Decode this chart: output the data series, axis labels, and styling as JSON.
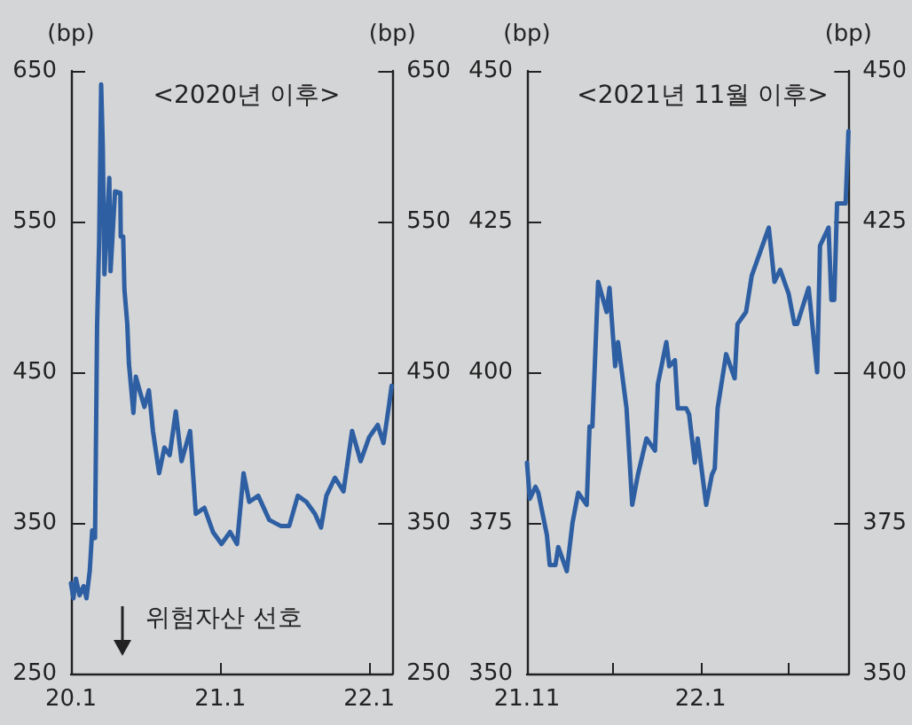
{
  "chart_data": [
    {
      "type": "line",
      "title": "<2020년 이후>",
      "ylabel": "(bp)",
      "y2label": "(bp)",
      "marker": "none",
      "annotations": [
        "위험자산 선호"
      ],
      "x": [
        "2020-01-01",
        "2020-01-07",
        "2020-01-13",
        "2020-01-22",
        "2020-02-01",
        "2020-02-08",
        "2020-02-16",
        "2020-02-22",
        "2020-02-29",
        "2020-03-05",
        "2020-03-10",
        "2020-03-15",
        "2020-03-19",
        "2020-03-23",
        "2020-04-04",
        "2020-04-07",
        "2020-04-18",
        "2020-05-01",
        "2020-05-02",
        "2020-05-08",
        "2020-05-11",
        "2020-05-18",
        "2020-05-22",
        "2020-06-02",
        "2020-06-08",
        "2020-06-15",
        "2020-06-29",
        "2020-07-10",
        "2020-07-20",
        "2020-08-04",
        "2020-08-17",
        "2020-08-30",
        "2020-09-14",
        "2020-09-28",
        "2020-10-19",
        "2020-11-02",
        "2020-11-23",
        "2020-12-14",
        "2021-01-04",
        "2021-01-25",
        "2021-02-11",
        "2021-02-27",
        "2021-03-13",
        "2021-04-04",
        "2021-05-01",
        "2021-05-29",
        "2021-06-19",
        "2021-07-10",
        "2021-07-31",
        "2021-08-21",
        "2021-09-05",
        "2021-09-18",
        "2021-10-09",
        "2021-10-30",
        "2021-11-20",
        "2021-12-11",
        "2022-01-01",
        "2022-01-22",
        "2022-02-05",
        "2022-02-18",
        "2022-02-25"
      ],
      "series": [
        {
          "color": "#2e5fa3",
          "values": [
            310,
            300,
            313,
            302,
            308,
            300,
            318,
            345,
            340,
            480,
            536,
            641,
            600,
            515,
            579,
            517,
            570,
            569,
            540,
            540,
            505,
            482,
            456,
            423,
            447,
            440,
            427,
            438,
            411,
            383,
            400,
            395,
            424,
            391,
            411,
            356,
            360,
            344,
            336,
            344,
            336,
            383,
            364,
            368,
            352,
            348,
            348,
            368,
            364,
            356,
            347,
            368,
            380,
            371,
            411,
            391,
            407,
            415,
            403,
            427,
            441
          ]
        }
      ],
      "xlim": [
        "2020-01-01",
        "2022-02-27"
      ],
      "xticks": [
        {
          "value": "2020-01",
          "label": "20.1"
        },
        {
          "value": "2021-01",
          "label": "21.1"
        },
        {
          "value": "2022-01",
          "label": "22.1"
        }
      ],
      "ylim": [
        250,
        650
      ],
      "yticks": [
        250,
        350,
        450,
        550,
        650
      ],
      "y2lim": [
        250,
        650
      ],
      "y2ticks": [
        250,
        350,
        450,
        550,
        650
      ]
    },
    {
      "type": "line",
      "title": "<2021년 11월 이후>",
      "ylabel": "(bp)",
      "y2label": "(bp)",
      "marker": "none",
      "x": [
        "2021-11-01",
        "2021-11-02",
        "2021-11-04",
        "2021-11-05",
        "2021-11-08",
        "2021-11-09",
        "2021-11-11",
        "2021-11-12",
        "2021-11-15",
        "2021-11-17",
        "2021-11-19",
        "2021-11-22",
        "2021-11-23",
        "2021-11-24",
        "2021-11-26",
        "2021-11-29",
        "2021-11-30",
        "2021-12-02",
        "2021-12-03",
        "2021-12-06",
        "2021-12-08",
        "2021-12-10",
        "2021-12-13",
        "2021-12-16",
        "2021-12-17",
        "2021-12-20",
        "2021-12-21",
        "2021-12-23",
        "2021-12-24",
        "2021-12-27",
        "2021-12-28",
        "2021-12-30",
        "2021-12-31",
        "2022-01-03",
        "2022-01-05",
        "2022-01-06",
        "2022-01-07",
        "2022-01-10",
        "2022-01-13",
        "2022-01-14",
        "2022-01-17",
        "2022-01-19",
        "2022-01-25",
        "2022-01-27",
        "2022-01-29",
        "2022-02-01",
        "2022-02-03",
        "2022-02-04",
        "2022-02-08",
        "2022-02-11",
        "2022-02-12",
        "2022-02-15",
        "2022-02-16",
        "2022-02-17",
        "2022-02-18",
        "2022-02-21",
        "2022-02-22"
      ],
      "series": [
        {
          "color": "#2e5fa3",
          "values": [
            385,
            379,
            381,
            380,
            373,
            368,
            368,
            371,
            367,
            375,
            380,
            378,
            391,
            391,
            415,
            410,
            414,
            401,
            405,
            394,
            378,
            383,
            389,
            387,
            398,
            405,
            401,
            402,
            394,
            394,
            393,
            385,
            389,
            378,
            383,
            384,
            394,
            403,
            399,
            408,
            410,
            416,
            424,
            415,
            417,
            413,
            408,
            408,
            414,
            400,
            421,
            424,
            412,
            412,
            428,
            428,
            440
          ]
        }
      ],
      "xlim": [
        "2021-11-01",
        "2022-02-22"
      ],
      "xticks": [
        {
          "value": "2021-11",
          "label": "21.11"
        },
        {
          "value": "2021-12",
          "label": null
        },
        {
          "value": "2022-01",
          "label": "22.1"
        },
        {
          "value": "2022-02",
          "label": null
        }
      ],
      "ylim": [
        350,
        450
      ],
      "yticks": [
        350,
        375,
        400,
        425,
        450
      ],
      "y2lim": [
        350,
        450
      ],
      "y2ticks": [
        350,
        375,
        400,
        425,
        450
      ]
    }
  ]
}
